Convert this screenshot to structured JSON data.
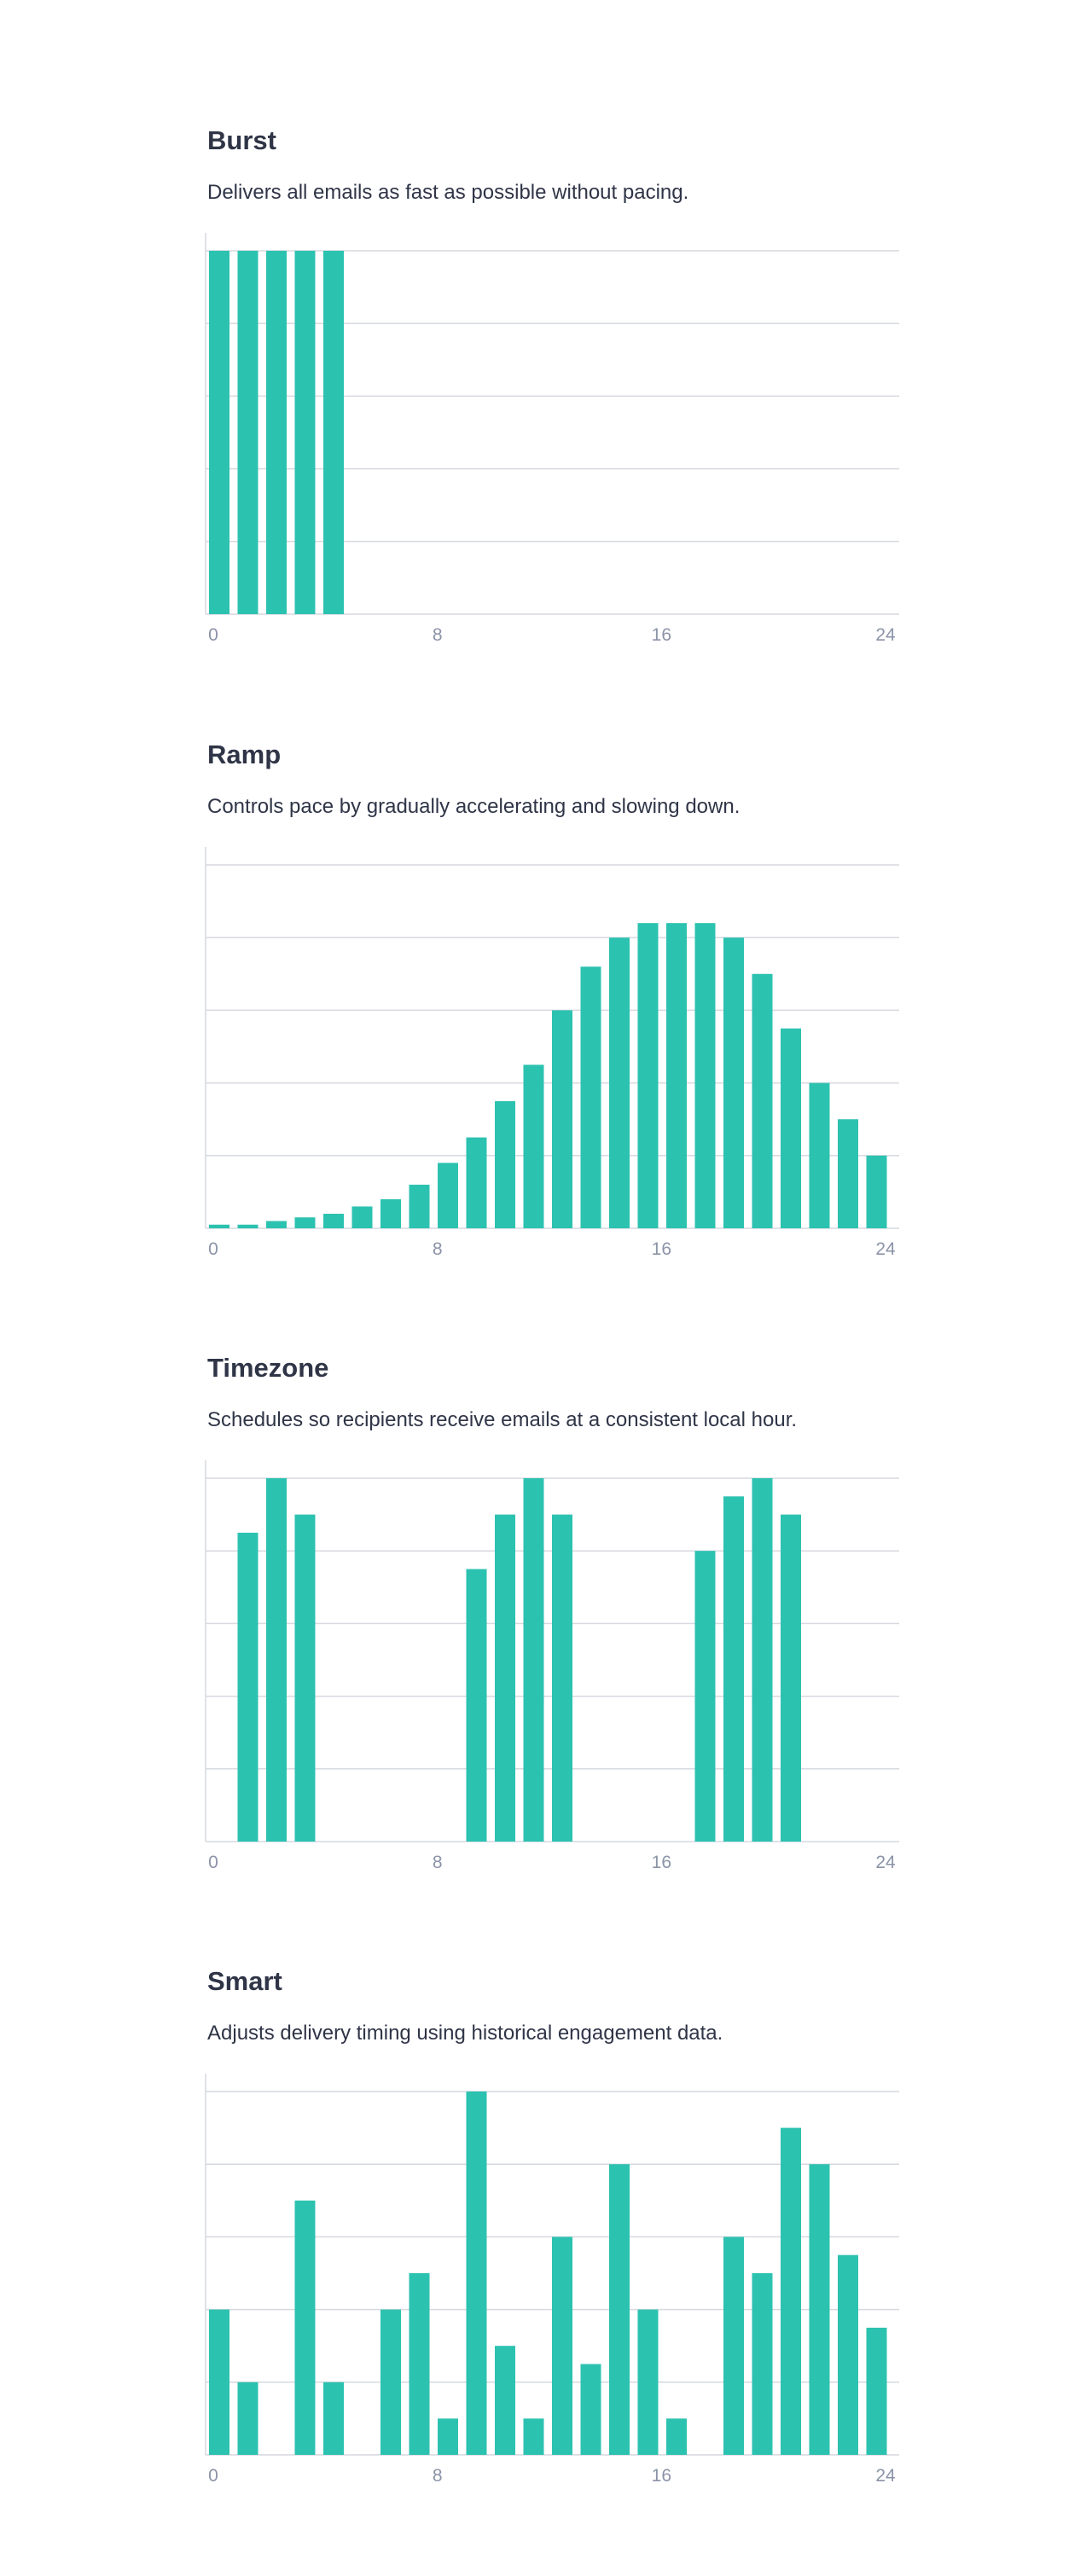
{
  "colors": {
    "bar": "#2cc2b0",
    "grid": "#d6d9e0",
    "title": "#2f3547",
    "tick": "#8b93a7"
  },
  "chart_data": [
    {
      "type": "bar",
      "title": "Burst",
      "subtitle": "Delivers all emails as fast as possible without pacing.",
      "x": [
        0,
        1,
        2,
        3,
        4,
        5,
        6,
        7,
        8,
        9,
        10,
        11,
        12,
        13,
        14,
        15,
        16,
        17,
        18,
        19,
        20,
        21,
        22,
        23
      ],
      "values": [
        100,
        100,
        100,
        100,
        100,
        0,
        0,
        0,
        0,
        0,
        0,
        0,
        0,
        0,
        0,
        0,
        0,
        0,
        0,
        0,
        0,
        0,
        0,
        0
      ],
      "xticks": [
        "0",
        "8",
        "16",
        "24"
      ],
      "xlim": [
        0,
        24
      ],
      "ylim": [
        0,
        100
      ],
      "grid": true
    },
    {
      "type": "bar",
      "title": "Ramp",
      "subtitle": "Controls pace by gradually accelerating and slowing down.",
      "x": [
        0,
        1,
        2,
        3,
        4,
        5,
        6,
        7,
        8,
        9,
        10,
        11,
        12,
        13,
        14,
        15,
        16,
        17,
        18,
        19,
        20,
        21,
        22,
        23
      ],
      "values": [
        1,
        1,
        2,
        3,
        4,
        6,
        8,
        12,
        18,
        25,
        35,
        45,
        60,
        72,
        80,
        84,
        84,
        84,
        80,
        70,
        55,
        40,
        30,
        20
      ],
      "xticks": [
        "0",
        "8",
        "16",
        "24"
      ],
      "xlim": [
        0,
        24
      ],
      "ylim": [
        0,
        100
      ],
      "grid": true
    },
    {
      "type": "bar",
      "title": "Timezone",
      "subtitle": "Schedules so recipients receive emails at a consistent local hour.",
      "x": [
        0,
        1,
        2,
        3,
        4,
        5,
        6,
        7,
        8,
        9,
        10,
        11,
        12,
        13,
        14,
        15,
        16,
        17,
        18,
        19,
        20,
        21,
        22,
        23
      ],
      "values": [
        0,
        85,
        100,
        90,
        0,
        0,
        0,
        0,
        0,
        75,
        90,
        100,
        90,
        0,
        0,
        0,
        0,
        80,
        95,
        100,
        90,
        0,
        0,
        0
      ],
      "xticks": [
        "0",
        "8",
        "16",
        "24"
      ],
      "xlim": [
        0,
        24
      ],
      "ylim": [
        0,
        100
      ],
      "grid": true
    },
    {
      "type": "bar",
      "title": "Smart",
      "subtitle": "Adjusts delivery timing using historical engagement data.",
      "x": [
        0,
        1,
        2,
        3,
        4,
        5,
        6,
        7,
        8,
        9,
        10,
        11,
        12,
        13,
        14,
        15,
        16,
        17,
        18,
        19,
        20,
        21,
        22,
        23
      ],
      "values": [
        40,
        20,
        0,
        70,
        20,
        0,
        40,
        50,
        10,
        100,
        30,
        10,
        60,
        25,
        80,
        40,
        10,
        0,
        60,
        50,
        90,
        80,
        55,
        35
      ],
      "xticks": [
        "0",
        "8",
        "16",
        "24"
      ],
      "xlim": [
        0,
        24
      ],
      "ylim": [
        0,
        100
      ],
      "grid": true
    }
  ]
}
